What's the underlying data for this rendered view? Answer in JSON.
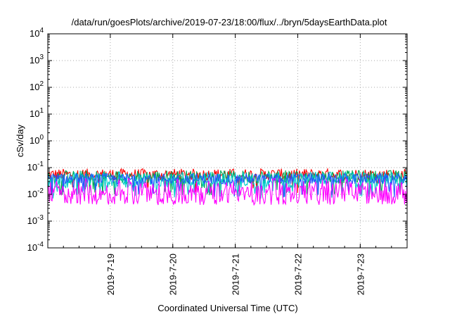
{
  "chart_data": {
    "type": "line",
    "title": "/data/run/goesPlots/archive/2019-07-23/18:00/flux/../bryn/5daysEarthData.plot",
    "xlabel": "Coordinated Universal Time (UTC)",
    "ylabel": "cSv/day",
    "yscale": "log",
    "ylim": [
      0.0001,
      10000
    ],
    "y_ticks": [
      {
        "base": "10",
        "exp": "-4",
        "value": 0.0001
      },
      {
        "base": "10",
        "exp": "-3",
        "value": 0.001
      },
      {
        "base": "10",
        "exp": "-2",
        "value": 0.01
      },
      {
        "base": "10",
        "exp": "-1",
        "value": 0.1
      },
      {
        "base": "10",
        "exp": "0",
        "value": 1
      },
      {
        "base": "10",
        "exp": "1",
        "value": 10
      },
      {
        "base": "10",
        "exp": "2",
        "value": 100
      },
      {
        "base": "10",
        "exp": "3",
        "value": 1000
      },
      {
        "base": "10",
        "exp": "4",
        "value": 10000
      }
    ],
    "xlim": [
      "2019-07-18 00:00",
      "2019-07-23 18:00"
    ],
    "x_ticks": [
      "2019-7-19",
      "2019-7-20",
      "2019-7-21",
      "2019-7-22",
      "2019-7-23"
    ],
    "x_tick_days": [
      1,
      2,
      3,
      4,
      5
    ],
    "x_span_days": 5.75,
    "grid": true,
    "series": [
      {
        "color": "#ff0000",
        "base": 0.055,
        "spread": 0.22,
        "dips": 0.03
      },
      {
        "color": "#00aa55",
        "base": 0.045,
        "spread": 0.25,
        "dips": 0.08
      },
      {
        "color": "#00cccc",
        "base": 0.035,
        "spread": 0.3,
        "dips": 0.1
      },
      {
        "color": "#2255ff",
        "base": 0.038,
        "spread": 0.2,
        "dips": 0.06
      },
      {
        "color": "#ff00ff",
        "base": 0.009,
        "spread": 0.35,
        "dips": 0.0
      }
    ]
  }
}
